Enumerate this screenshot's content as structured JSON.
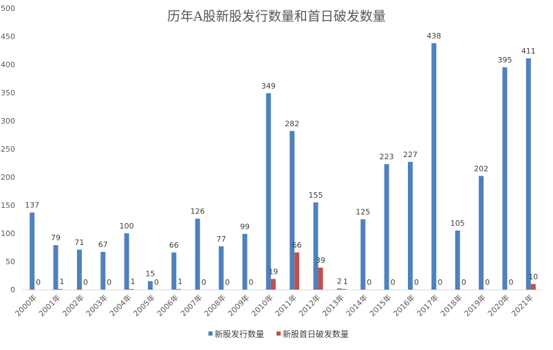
{
  "chart_data": {
    "type": "bar",
    "title": "历年A股新股发行数量和首日破发数量",
    "categories": [
      "2000年",
      "2001年",
      "2002年",
      "2003年",
      "2004年",
      "2005年",
      "2006年",
      "2007年",
      "2008年",
      "2009年",
      "2010年",
      "2011年",
      "2012年",
      "2013年",
      "2014年",
      "2015年",
      "2016年",
      "2017年",
      "2018年",
      "2019年",
      "2020年",
      "2021年"
    ],
    "series": [
      {
        "name": "新股发行数量",
        "color": "#4f81bd",
        "values": [
          137,
          79,
          71,
          67,
          100,
          15,
          66,
          126,
          77,
          99,
          349,
          282,
          155,
          2,
          125,
          223,
          227,
          438,
          105,
          202,
          395,
          411
        ]
      },
      {
        "name": "新股首日破发数量",
        "color": "#c0504d",
        "values": [
          0,
          1,
          0,
          0,
          1,
          0,
          1,
          0,
          0,
          0,
          19,
          66,
          39,
          1,
          0,
          0,
          0,
          0,
          0,
          0,
          0,
          10
        ]
      }
    ],
    "ylim": [
      0,
      500
    ],
    "yticks": [
      0,
      50,
      100,
      150,
      200,
      250,
      300,
      350,
      400,
      450,
      500
    ],
    "grid": false,
    "data_labels": true,
    "legend": "bottom"
  }
}
